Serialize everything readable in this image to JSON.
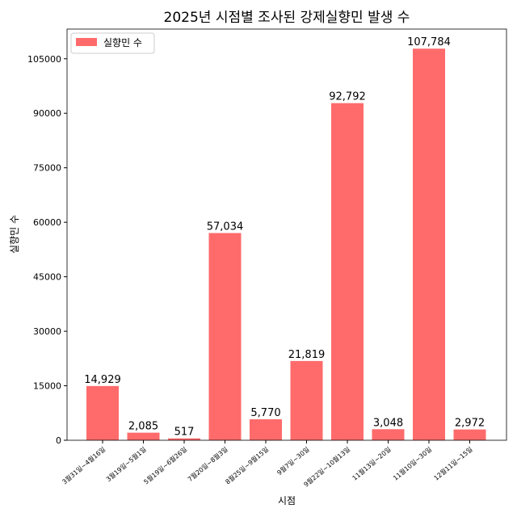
{
  "chart_data": {
    "type": "bar",
    "title": "2025년 시점별 조사된 강제실향민 발생 수",
    "xlabel": "시점",
    "ylabel": "실향민 수",
    "categories": [
      "3월31일~4월16일",
      "3월19일~5월1일",
      "5월19일~6월26일",
      "7월20일~8월3일",
      "8월25일~9월15일",
      "9월7일~30일",
      "9월22일~10월13일",
      "11월13일~20일",
      "11월10일~30일",
      "12월11일~15일"
    ],
    "values": [
      14929,
      2085,
      517,
      57034,
      5770,
      21819,
      92792,
      3048,
      107784,
      2972
    ],
    "data_labels": [
      "14,929",
      "2,085",
      "517",
      "57,034",
      "5,770",
      "21,819",
      "92,792",
      "3,048",
      "107,784",
      "2,972"
    ],
    "yticks": [
      0,
      15000,
      30000,
      45000,
      60000,
      75000,
      90000,
      105000
    ],
    "ylim": [
      0,
      113173
    ],
    "legend": {
      "label": "실향민 수",
      "placement": "top-left"
    },
    "bar_color": "#ff6b6b",
    "grid": false
  }
}
